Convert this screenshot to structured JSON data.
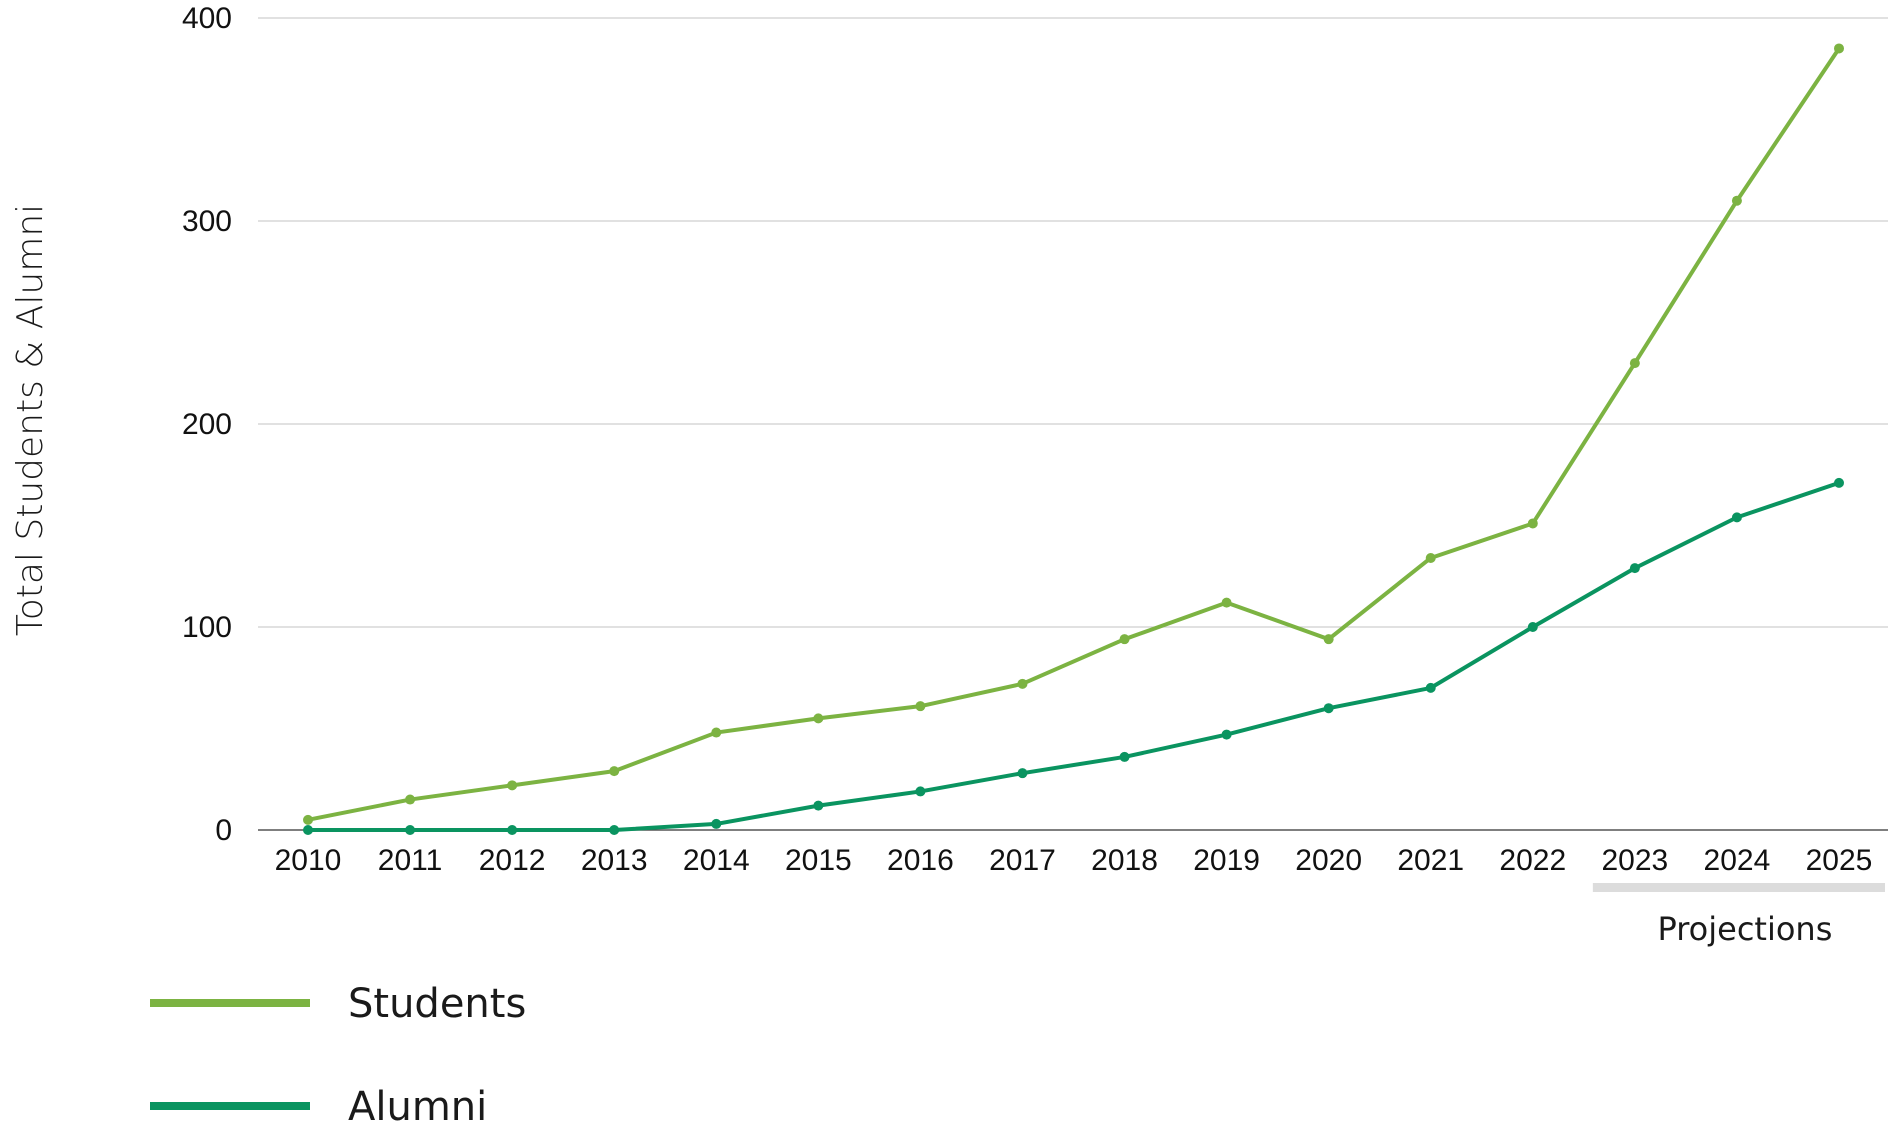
{
  "chart_data": {
    "type": "line",
    "title": "",
    "xlabel": "",
    "ylabel": "Total Students & Alumni",
    "x": [
      "2010",
      "2011",
      "2012",
      "2013",
      "2014",
      "2015",
      "2016",
      "2017",
      "2018",
      "2019",
      "2020",
      "2021",
      "2022",
      "2023",
      "2024",
      "2025"
    ],
    "ylim": [
      0,
      400
    ],
    "yticks": [
      0,
      100,
      200,
      300,
      400
    ],
    "grid": true,
    "series": [
      {
        "name": "Students",
        "color": "#7cb342",
        "values": [
          5,
          15,
          22,
          29,
          48,
          55,
          61,
          72,
          94,
          112,
          94,
          134,
          151,
          230,
          310,
          385
        ]
      },
      {
        "name": "Alumni",
        "color": "#0a9460",
        "values": [
          0,
          0,
          0,
          0,
          3,
          12,
          19,
          28,
          36,
          47,
          60,
          70,
          100,
          129,
          154,
          171
        ]
      }
    ],
    "annotation": {
      "text": "Projections",
      "from": "2023",
      "to": "2025",
      "bar_color": "#dcdcdc"
    },
    "legend_position": "bottom-left"
  }
}
